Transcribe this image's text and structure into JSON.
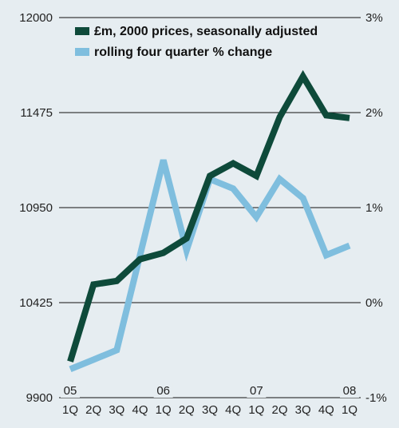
{
  "chart_data": {
    "type": "line",
    "title": "",
    "xlabel": "",
    "ylabel": "",
    "categories": [
      "1Q",
      "2Q",
      "3Q",
      "4Q",
      "1Q",
      "2Q",
      "3Q",
      "4Q",
      "1Q",
      "2Q",
      "3Q",
      "4Q",
      "1Q"
    ],
    "year_labels": [
      {
        "label": "05",
        "index": 0
      },
      {
        "label": "06",
        "index": 4
      },
      {
        "label": "07",
        "index": 8
      },
      {
        "label": "08",
        "index": 12
      }
    ],
    "left_axis": {
      "ylim": [
        9900,
        12000
      ],
      "ticks": [
        9900,
        10425,
        10950,
        11475,
        12000
      ],
      "tick_labels": [
        "9900",
        "10425",
        "10950",
        "11475",
        "12000"
      ]
    },
    "right_axis": {
      "ylim": [
        -1,
        3
      ],
      "ticks": [
        -1,
        0,
        1,
        2,
        3
      ],
      "tick_labels": [
        "-1%",
        "0%",
        "1%",
        "2%",
        "3%"
      ]
    },
    "series": [
      {
        "name": "£m, 2000 prices, seasonally adjusted",
        "axis": "left",
        "color": "#0e4a3a",
        "values": [
          10100,
          10525,
          10545,
          10665,
          10700,
          10780,
          11125,
          11195,
          11125,
          11450,
          11675,
          11460,
          11445
        ]
      },
      {
        "name": "rolling four quarter % change",
        "axis": "right",
        "color": "#7fbede",
        "values": [
          -0.7,
          -0.6,
          -0.5,
          0.5,
          1.5,
          0.55,
          1.3,
          1.2,
          0.9,
          1.3,
          1.1,
          0.5,
          0.6
        ]
      }
    ],
    "grid": "horizontal",
    "legend_position": "top-left"
  }
}
